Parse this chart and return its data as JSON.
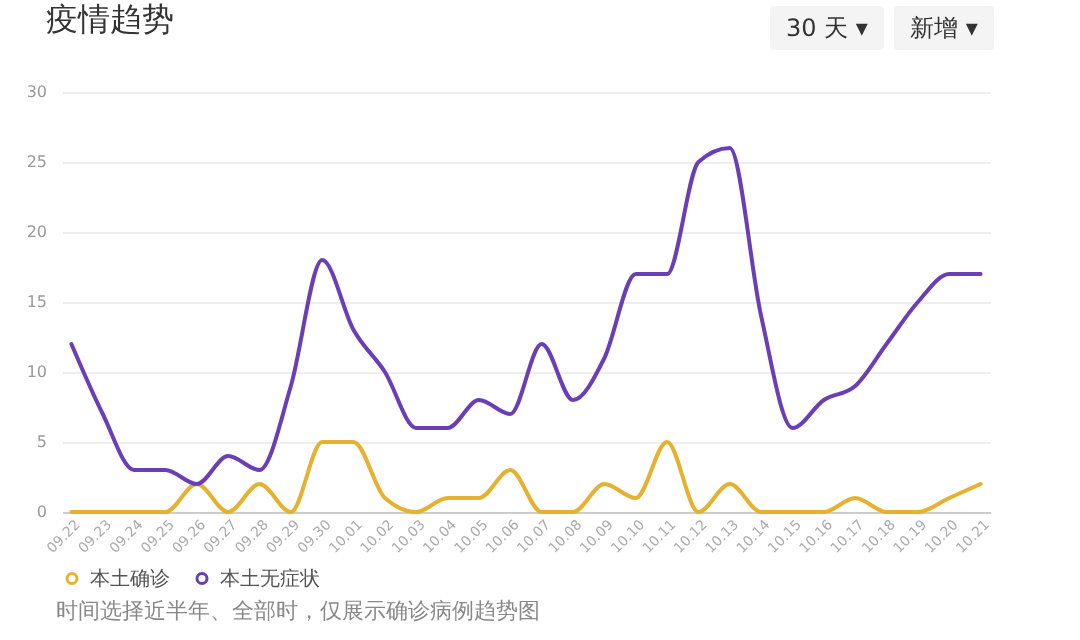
{
  "chart_data": {
    "type": "line",
    "title": "疫情趋势",
    "categories": [
      "09.22",
      "09.23",
      "09.24",
      "09.25",
      "09.26",
      "09.27",
      "09.28",
      "09.29",
      "09.30",
      "10.01",
      "10.02",
      "10.03",
      "10.04",
      "10.05",
      "10.06",
      "10.07",
      "10.08",
      "10.09",
      "10.10",
      "10.11",
      "10.12",
      "10.13",
      "10.14",
      "10.15",
      "10.16",
      "10.17",
      "10.18",
      "10.19",
      "10.20",
      "10.21"
    ],
    "series": [
      {
        "name": "本土确诊",
        "color": "#e6b12e",
        "values": [
          0,
          0,
          0,
          0,
          2,
          0,
          2,
          0,
          5,
          5,
          1,
          0,
          1,
          1,
          3,
          0,
          0,
          2,
          1,
          5,
          0,
          2,
          0,
          0,
          0,
          1,
          0,
          0,
          1,
          2
        ]
      },
      {
        "name": "本土无症状",
        "color": "#6a3fb5",
        "values": [
          12,
          7,
          3,
          3,
          2,
          4,
          3,
          9,
          18,
          13,
          10,
          6,
          6,
          8,
          7,
          12,
          8,
          11,
          17,
          17,
          25,
          26,
          14,
          6,
          8,
          9,
          12,
          15,
          17,
          17
        ]
      }
    ],
    "ylim": [
      0,
      30
    ],
    "yticks": [
      0,
      5,
      10,
      15,
      20,
      25,
      30
    ],
    "grid": "y",
    "legend": "bottom",
    "marker": "none",
    "line_style": "solid",
    "annotations": [
      "30 天 ▾",
      "新增 ▾",
      "时间选择近半年、全部时，仅展示确诊病例趋势图"
    ]
  }
}
